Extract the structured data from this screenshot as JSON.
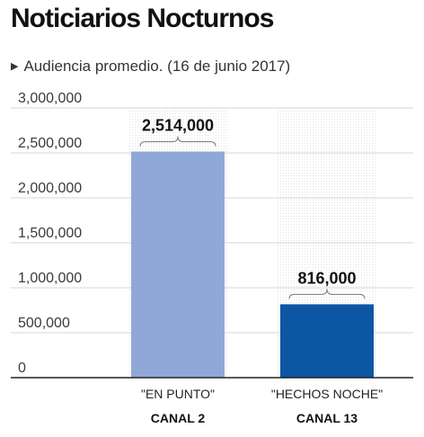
{
  "header": {
    "title": "Noticiarios Nocturnos",
    "subtitle": "Audiencia promedio. (16 de junio 2017)",
    "marker_icon": "play-triangle-icon"
  },
  "chart_data": {
    "type": "bar",
    "title": "Noticiarios Nocturnos",
    "subtitle": "Audiencia promedio. (16 de junio 2017)",
    "categories": [
      "\"EN PUNTO\"",
      "\"HECHOS NOCHE\""
    ],
    "channels": [
      "CANAL 2",
      "CANAL 13"
    ],
    "values": [
      2514000,
      816000
    ],
    "value_labels": [
      "2,514,000",
      "816,000"
    ],
    "colors": [
      "#8fa8d8",
      "#0c56a3"
    ],
    "ylim": [
      0,
      3000000
    ],
    "yticks": [
      0,
      500000,
      1000000,
      1500000,
      2000000,
      2500000,
      3000000
    ],
    "ytick_labels": [
      "0",
      "500,000",
      "1,000,000",
      "1,500,000",
      "2,000,000",
      "2,500,000",
      "3,000,000"
    ],
    "grid": true,
    "xlabel": "",
    "ylabel": ""
  }
}
